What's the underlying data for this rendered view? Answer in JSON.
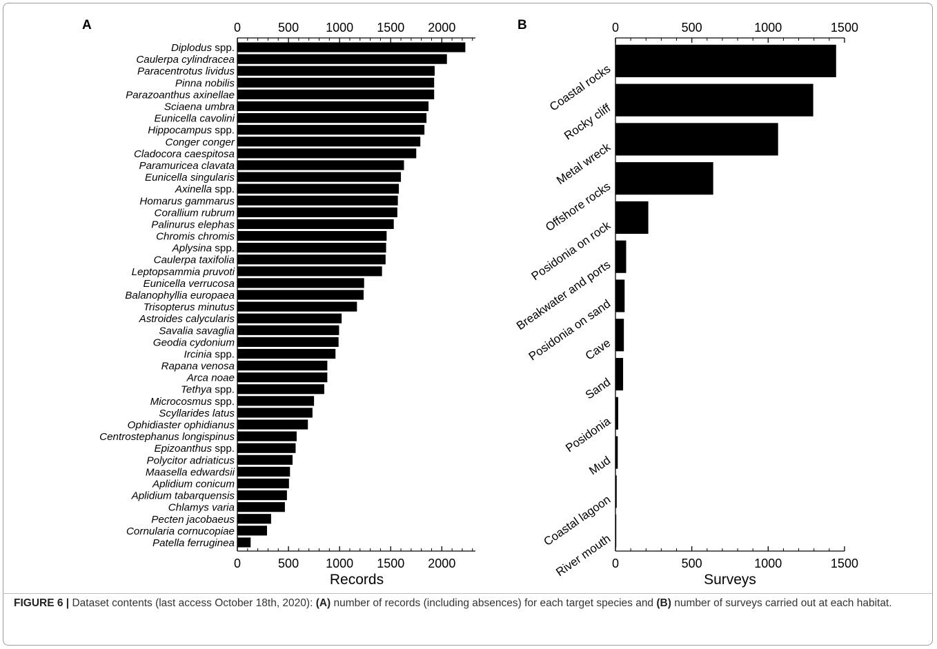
{
  "chart_data": [
    {
      "panel": "A",
      "type": "bar",
      "orientation": "horizontal",
      "xlabel": "Records",
      "ylabel": "",
      "xlim": [
        0,
        2300
      ],
      "ticks": [
        "0",
        "500",
        "1000",
        "1500",
        "2000"
      ],
      "tick_values": [
        0,
        500,
        1000,
        1500,
        2000
      ],
      "grid": false,
      "categories": [
        {
          "name": "Diplodus",
          "suffix": " spp."
        },
        {
          "name": "Caulerpa cylindracea",
          "suffix": ""
        },
        {
          "name": "Paracentrotus lividus",
          "suffix": ""
        },
        {
          "name": "Pinna nobilis",
          "suffix": ""
        },
        {
          "name": "Parazoanthus axinellae",
          "suffix": ""
        },
        {
          "name": "Sciaena umbra",
          "suffix": ""
        },
        {
          "name": "Eunicella cavolini",
          "suffix": ""
        },
        {
          "name": "Hippocampus",
          "suffix": " spp."
        },
        {
          "name": "Conger conger",
          "suffix": ""
        },
        {
          "name": "Cladocora caespitosa",
          "suffix": ""
        },
        {
          "name": "Paramuricea clavata",
          "suffix": ""
        },
        {
          "name": "Eunicella singularis",
          "suffix": ""
        },
        {
          "name": "Axinella",
          "suffix": " spp."
        },
        {
          "name": "Homarus gammarus",
          "suffix": ""
        },
        {
          "name": "Corallium rubrum",
          "suffix": ""
        },
        {
          "name": "Palinurus elephas",
          "suffix": ""
        },
        {
          "name": "Chromis chromis",
          "suffix": ""
        },
        {
          "name": "Aplysina",
          "suffix": " spp."
        },
        {
          "name": "Caulerpa taxifolia",
          "suffix": ""
        },
        {
          "name": "Leptopsammia pruvoti",
          "suffix": ""
        },
        {
          "name": "Eunicella verrucosa",
          "suffix": ""
        },
        {
          "name": "Balanophyllia europaea",
          "suffix": ""
        },
        {
          "name": "Trisopterus minutus",
          "suffix": ""
        },
        {
          "name": "Astroides calycularis",
          "suffix": ""
        },
        {
          "name": "Savalia savaglia",
          "suffix": ""
        },
        {
          "name": "Geodia cydonium",
          "suffix": ""
        },
        {
          "name": "Ircinia",
          "suffix": " spp."
        },
        {
          "name": "Rapana venosa",
          "suffix": ""
        },
        {
          "name": "Arca noae",
          "suffix": ""
        },
        {
          "name": "Tethya",
          "suffix": " spp."
        },
        {
          "name": "Microcosmus",
          "suffix": " spp."
        },
        {
          "name": "Scyllarides latus",
          "suffix": ""
        },
        {
          "name": "Ophidiaster ophidianus",
          "suffix": ""
        },
        {
          "name": "Centrostephanus longispinus",
          "suffix": ""
        },
        {
          "name": "Epizoanthus",
          "suffix": " spp."
        },
        {
          "name": "Polycitor adriaticus",
          "suffix": ""
        },
        {
          "name": "Maasella edwardsii",
          "suffix": ""
        },
        {
          "name": "Aplidium conicum",
          "suffix": ""
        },
        {
          "name": "Aplidium tabarquensis",
          "suffix": ""
        },
        {
          "name": "Chlamys varia",
          "suffix": ""
        },
        {
          "name": "Pecten jacobaeus",
          "suffix": ""
        },
        {
          "name": "Cornularia cornucopiae",
          "suffix": ""
        },
        {
          "name": "Patella ferruginea",
          "suffix": ""
        }
      ],
      "values": [
        2230,
        2050,
        1930,
        1925,
        1925,
        1870,
        1850,
        1830,
        1790,
        1750,
        1630,
        1600,
        1580,
        1570,
        1565,
        1530,
        1460,
        1455,
        1450,
        1415,
        1240,
        1235,
        1170,
        1020,
        995,
        990,
        960,
        880,
        880,
        850,
        750,
        735,
        690,
        580,
        570,
        540,
        515,
        505,
        485,
        465,
        330,
        290,
        130
      ]
    },
    {
      "panel": "B",
      "type": "bar",
      "orientation": "horizontal",
      "xlabel": "Surveys",
      "ylabel": "",
      "xlim": [
        0,
        1500
      ],
      "ticks": [
        "0",
        "500",
        "1000",
        "1500"
      ],
      "tick_values": [
        0,
        500,
        1000,
        1500
      ],
      "grid": false,
      "categories": [
        "Coastal rocks",
        "Rocky cliff",
        "Metal wreck",
        "Offshore rocks",
        "Posidonia on rock",
        "Breakwater and ports",
        "Posidonia on sand",
        "Cave",
        "Sand",
        "Posidonia",
        "Mud",
        "Coastal lagoon",
        "River mouth"
      ],
      "values": [
        1445,
        1295,
        1065,
        640,
        215,
        70,
        60,
        55,
        50,
        18,
        15,
        8,
        3
      ]
    }
  ],
  "caption": {
    "fig_label": "FIGURE 6 |",
    "text_1": " Dataset contents (last access October 18th, 2020): ",
    "a_label": "(A)",
    "text_2": " number of records (including absences) for each target species and ",
    "b_label": "(B)",
    "text_3": " number of surveys carried out at each habitat."
  },
  "colors": {
    "bar": "#000000",
    "axis": "#000000",
    "caption_text": "#333333"
  }
}
